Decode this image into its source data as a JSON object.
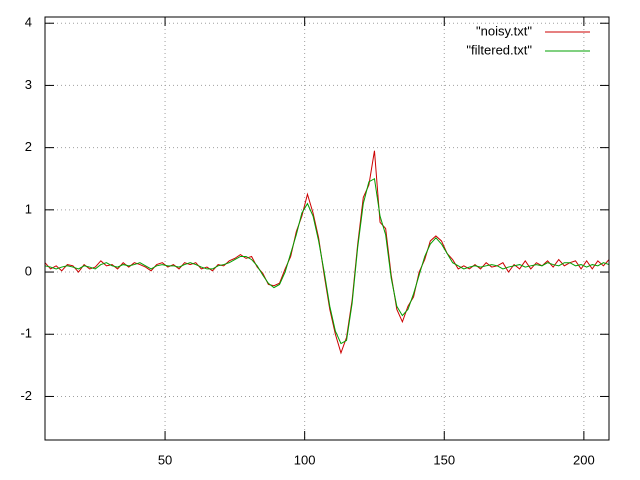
{
  "chart_data": {
    "type": "line",
    "x": [
      7,
      9,
      11,
      13,
      15,
      17,
      19,
      21,
      23,
      25,
      27,
      29,
      31,
      33,
      35,
      37,
      39,
      41,
      43,
      45,
      47,
      49,
      51,
      53,
      55,
      57,
      59,
      61,
      63,
      65,
      67,
      69,
      71,
      73,
      75,
      77,
      79,
      81,
      83,
      85,
      87,
      89,
      91,
      93,
      95,
      97,
      99,
      101,
      103,
      105,
      107,
      109,
      111,
      113,
      115,
      117,
      119,
      121,
      123,
      125,
      127,
      129,
      131,
      133,
      135,
      137,
      139,
      141,
      143,
      145,
      147,
      149,
      151,
      153,
      155,
      157,
      159,
      161,
      163,
      165,
      167,
      169,
      171,
      173,
      175,
      177,
      179,
      181,
      183,
      185,
      187,
      189,
      191,
      193,
      195,
      197,
      199,
      201,
      203,
      205,
      207,
      209
    ],
    "series": [
      {
        "name": "\"noisy.txt\"",
        "color": "#cc0000",
        "values": [
          0.15,
          0.05,
          0.1,
          0.02,
          0.12,
          0.1,
          0.0,
          0.12,
          0.05,
          0.08,
          0.18,
          0.1,
          0.12,
          0.05,
          0.15,
          0.08,
          0.15,
          0.12,
          0.08,
          0.02,
          0.12,
          0.15,
          0.08,
          0.12,
          0.05,
          0.15,
          0.12,
          0.15,
          0.05,
          0.08,
          0.02,
          0.12,
          0.1,
          0.18,
          0.22,
          0.28,
          0.22,
          0.25,
          0.08,
          -0.02,
          -0.2,
          -0.22,
          -0.18,
          0.05,
          0.25,
          0.65,
          0.9,
          1.25,
          0.95,
          0.55,
          -0.05,
          -0.6,
          -1.0,
          -1.3,
          -1.05,
          -0.45,
          0.45,
          1.2,
          1.4,
          1.95,
          0.8,
          0.7,
          -0.05,
          -0.6,
          -0.8,
          -0.55,
          -0.4,
          0.0,
          0.2,
          0.5,
          0.58,
          0.5,
          0.3,
          0.2,
          0.05,
          0.1,
          0.05,
          0.12,
          0.05,
          0.15,
          0.08,
          0.1,
          0.15,
          0.0,
          0.12,
          0.05,
          0.18,
          0.05,
          0.15,
          0.1,
          0.18,
          0.08,
          0.2,
          0.1,
          0.15,
          0.18,
          0.05,
          0.18,
          0.05,
          0.18,
          0.1,
          0.2
        ]
      },
      {
        "name": "\"filtered.txt\"",
        "color": "#00a000",
        "values": [
          0.1,
          0.08,
          0.05,
          0.08,
          0.1,
          0.08,
          0.05,
          0.1,
          0.08,
          0.05,
          0.12,
          0.15,
          0.1,
          0.08,
          0.12,
          0.1,
          0.12,
          0.15,
          0.1,
          0.05,
          0.1,
          0.12,
          0.1,
          0.1,
          0.08,
          0.12,
          0.15,
          0.12,
          0.08,
          0.05,
          0.05,
          0.1,
          0.12,
          0.15,
          0.2,
          0.25,
          0.25,
          0.2,
          0.1,
          -0.05,
          -0.18,
          -0.25,
          -0.2,
          0.0,
          0.3,
          0.6,
          0.95,
          1.1,
          0.9,
          0.5,
          0.0,
          -0.55,
          -0.95,
          -1.15,
          -1.1,
          -0.5,
          0.4,
          1.1,
          1.45,
          1.5,
          0.9,
          0.6,
          -0.1,
          -0.55,
          -0.7,
          -0.6,
          -0.35,
          -0.05,
          0.25,
          0.45,
          0.55,
          0.45,
          0.3,
          0.15,
          0.1,
          0.05,
          0.08,
          0.1,
          0.08,
          0.1,
          0.12,
          0.1,
          0.05,
          0.08,
          0.1,
          0.12,
          0.08,
          0.1,
          0.12,
          0.1,
          0.15,
          0.12,
          0.1,
          0.15,
          0.15,
          0.1,
          0.12,
          0.08,
          0.12,
          0.1,
          0.15,
          0.12
        ]
      }
    ],
    "xlim": [
      7,
      209
    ],
    "xticks": [
      50,
      100,
      150,
      200
    ],
    "ylim": [
      -2.7,
      4.1
    ],
    "yticks": [
      -2,
      -1,
      0,
      1,
      2,
      3,
      4
    ],
    "grid": true,
    "legend": "top-right"
  }
}
